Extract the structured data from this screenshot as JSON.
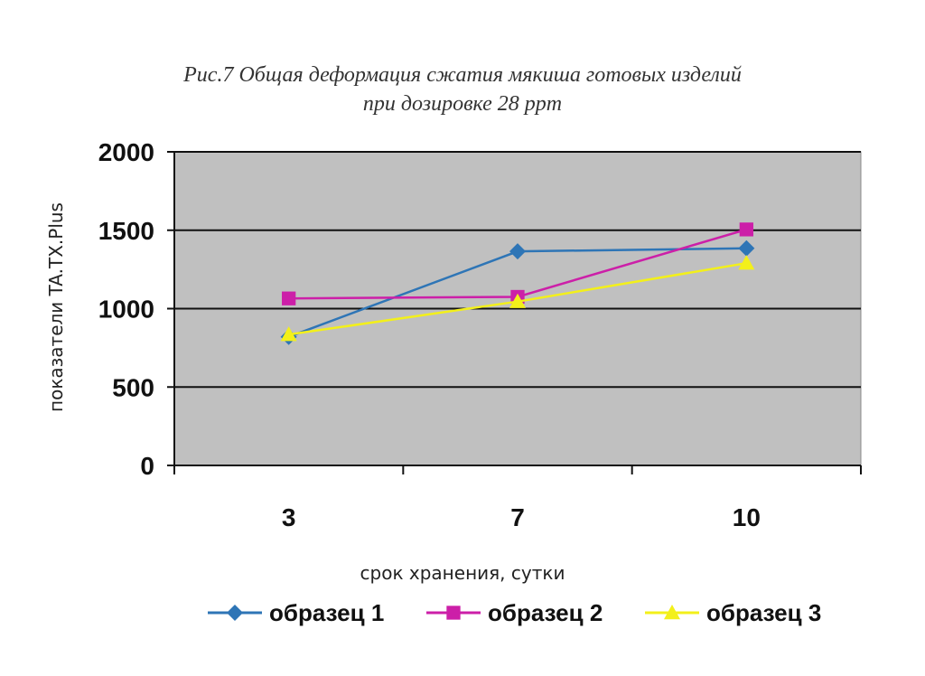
{
  "chart_data": {
    "type": "line",
    "title_line1": "Рис.7 Общая деформация сжатия мякиша готовых изделий",
    "title_line2": "при дозировке 28 ppm",
    "xlabel": "срок хранения, сутки",
    "ylabel": "показатели TA.TX.Plus",
    "categories": [
      "3",
      "7",
      "10"
    ],
    "ylim": [
      0,
      2000
    ],
    "yticks": [
      "0",
      "500",
      "1000",
      "1500",
      "2000"
    ],
    "grid": true,
    "plot_background": "#c0c0c0",
    "legend_position": "bottom",
    "series": [
      {
        "name": "образец 1",
        "values": [
          820,
          1365,
          1385
        ],
        "color": "#2e75b6",
        "marker": "diamond"
      },
      {
        "name": "образец 2",
        "values": [
          1065,
          1075,
          1505
        ],
        "color": "#cc1fa8",
        "marker": "square"
      },
      {
        "name": "образец 3",
        "values": [
          835,
          1045,
          1290
        ],
        "color": "#f3f01a",
        "marker": "triangle"
      }
    ]
  }
}
